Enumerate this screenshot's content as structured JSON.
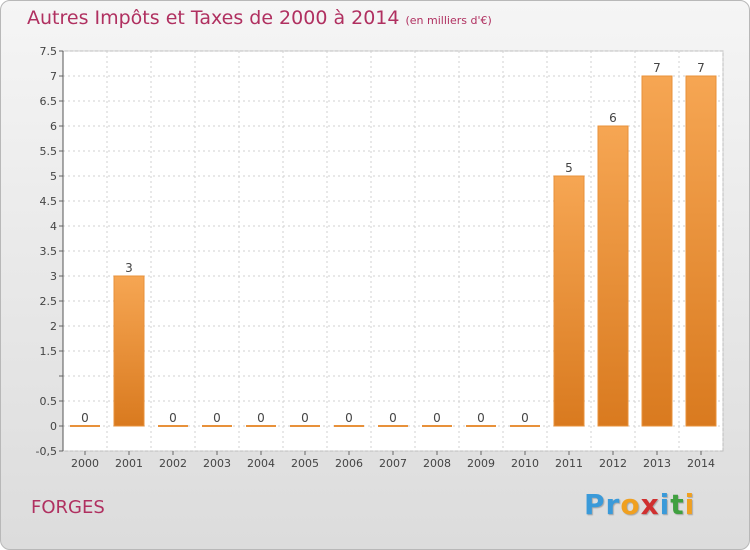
{
  "title": "Autres Impôts et Taxes de 2000 à 2014",
  "subtitle": "(en milliers d'€)",
  "commune": "FORGES",
  "logo": {
    "text": "Proxiti",
    "letters": [
      {
        "ch": "P",
        "color": "#3a9ad9"
      },
      {
        "ch": "r",
        "color": "#3a9ad9"
      },
      {
        "ch": "o",
        "color": "#f0a020"
      },
      {
        "ch": "x",
        "color": "#d03030"
      },
      {
        "ch": "i",
        "color": "#3a9ad9"
      },
      {
        "ch": "t",
        "color": "#40a040"
      },
      {
        "ch": "i",
        "color": "#f0a020"
      }
    ]
  },
  "colors": {
    "title": "#b03060",
    "bar_light": "#f6a653",
    "bar_dark": "#d97a1f",
    "grid": "#d0d0d0"
  },
  "chart_data": {
    "type": "bar",
    "categories": [
      "2000",
      "2001",
      "2002",
      "2003",
      "2004",
      "2005",
      "2006",
      "2007",
      "2008",
      "2009",
      "2010",
      "2011",
      "2012",
      "2013",
      "2014"
    ],
    "values": [
      0,
      3,
      0,
      0,
      0,
      0,
      0,
      0,
      0,
      0,
      0,
      5,
      6,
      7,
      7
    ],
    "labels": [
      "0",
      "3",
      "0",
      "0",
      "0",
      "0",
      "0",
      "0",
      "0",
      "0",
      "0",
      "5",
      "6",
      "7",
      "7"
    ],
    "yticks": [
      -0.5,
      0,
      0.5,
      1,
      1.5,
      2,
      2.5,
      3,
      3.5,
      4,
      4.5,
      5,
      5.5,
      6,
      6.5,
      7,
      7.5
    ],
    "ytick_labels": [
      "-0,5",
      "0",
      "0.5",
      "",
      "1.5",
      "2",
      "2.5",
      "3",
      "3.5",
      "4",
      "4.5",
      "5",
      "5.5",
      "6",
      "6.5",
      "7",
      "7.5"
    ],
    "ylim": [
      -0.5,
      7.5
    ],
    "grid": true
  }
}
